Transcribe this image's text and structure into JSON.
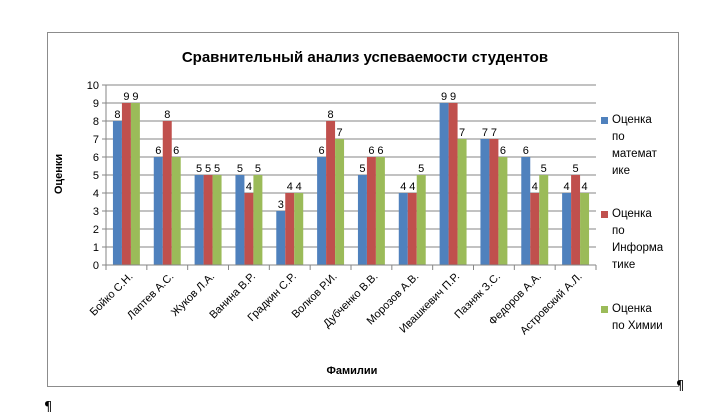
{
  "chart_data": {
    "type": "bar",
    "title": "Сравнительный анализ успеваемости студентов",
    "xlabel": "Фамилии",
    "ylabel": "Оценки",
    "ylim": [
      0,
      10
    ],
    "yticks": [
      0,
      1,
      2,
      3,
      4,
      5,
      6,
      7,
      8,
      9,
      10
    ],
    "grid": true,
    "legend_position": "right",
    "categories": [
      "Бойко С.Н.",
      "Лаптев А.С.",
      "Жуков Л.А.",
      "Ванина В.Р.",
      "Градкин С.Р.",
      "Волков Р.И.",
      "Дубченко В.В.",
      "Морозов А.В.",
      "Ивашкевич П.Р.",
      "Пазняк З.С.",
      "Федоров А.А.",
      "Астровский А.Л."
    ],
    "series": [
      {
        "name": "Оценка по математике",
        "legend_lines": [
          "Оценка",
          "по",
          "математ",
          "ике"
        ],
        "color": "#4F81BD",
        "values": [
          8,
          6,
          5,
          5,
          3,
          6,
          5,
          4,
          9,
          7,
          6,
          4
        ]
      },
      {
        "name": "Оценка по Информатике",
        "legend_lines": [
          "Оценка",
          "по",
          "Информа",
          "тике"
        ],
        "color": "#C0504D",
        "values": [
          9,
          8,
          5,
          4,
          4,
          8,
          6,
          4,
          9,
          7,
          4,
          5
        ]
      },
      {
        "name": "Оценка по Химии",
        "legend_lines": [
          "Оценка",
          "по Химии"
        ],
        "color": "#9BBB59",
        "values": [
          9,
          6,
          5,
          5,
          4,
          7,
          6,
          5,
          7,
          6,
          5,
          4
        ]
      }
    ]
  },
  "marks": {
    "pilcrow": "¶"
  }
}
